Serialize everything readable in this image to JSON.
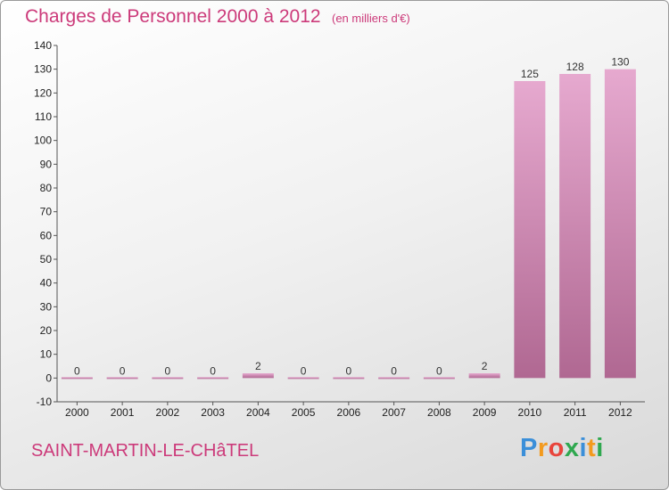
{
  "title": "Charges de Personnel 2000 à 2012",
  "subtitle": "(en milliers d'€)",
  "commune": "SAINT-MARTIN-LE-CHâTEL",
  "logo": {
    "letters": [
      "P",
      "r",
      "o",
      "x",
      "i",
      "t",
      "i"
    ],
    "colors": [
      "#3b8fd9",
      "#f39a1e",
      "#e8453c",
      "#2fa84f",
      "#3b8fd9",
      "#f39a1e",
      "#2fa84f"
    ]
  },
  "colors": {
    "accent": "#cc3a7a",
    "bar_top": "#e6a9cf",
    "bar_bottom": "#b06892"
  },
  "chart_data": {
    "type": "bar",
    "categories": [
      "2000",
      "2001",
      "2002",
      "2003",
      "2004",
      "2005",
      "2006",
      "2007",
      "2008",
      "2009",
      "2010",
      "2011",
      "2012"
    ],
    "values": [
      0,
      0,
      0,
      0,
      2,
      0,
      0,
      0,
      0,
      2,
      125,
      128,
      130
    ],
    "title": "Charges de Personnel 2000 à 2012",
    "subtitle": "(en milliers d'€)",
    "xlabel": "",
    "ylabel": "",
    "ylim": [
      -10,
      140
    ],
    "yticks": [
      -10,
      0,
      10,
      20,
      30,
      40,
      50,
      60,
      70,
      80,
      90,
      100,
      110,
      120,
      130,
      140
    ],
    "grid": false,
    "legend": "none"
  }
}
